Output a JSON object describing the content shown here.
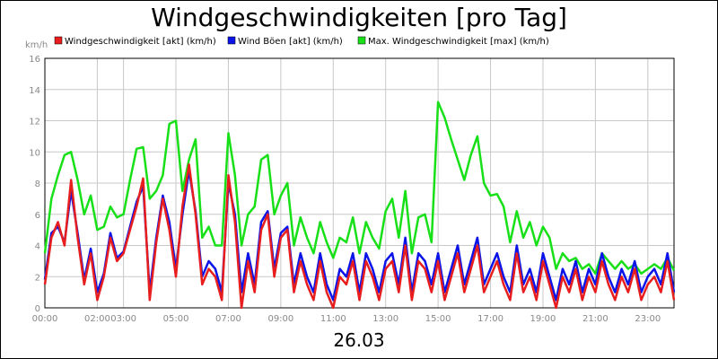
{
  "chart_data": {
    "type": "line",
    "title": "Windgeschwindigkeiten [pro Tag]",
    "unit_label": "km/h",
    "date_label": "26.03",
    "ylim": [
      0,
      16
    ],
    "y_ticks": [
      "0",
      "2",
      "4",
      "6",
      "8",
      "10",
      "12",
      "14",
      "16"
    ],
    "xlim_hours": [
      0,
      24
    ],
    "x_ticks": [
      "00:00",
      "02:00",
      "03:00",
      "05:00",
      "07:00",
      "09:00",
      "11:00",
      "13:00",
      "15:00",
      "17:00",
      "19:00",
      "21:00",
      "23:00"
    ],
    "grid": true,
    "legend_position": "top",
    "x": [
      0,
      0.25,
      0.5,
      0.75,
      1,
      1.25,
      1.5,
      1.75,
      2,
      2.25,
      2.5,
      2.75,
      3,
      3.25,
      3.5,
      3.75,
      4,
      4.25,
      4.5,
      4.75,
      5,
      5.25,
      5.5,
      5.75,
      6,
      6.25,
      6.5,
      6.75,
      7,
      7.25,
      7.5,
      7.75,
      8,
      8.25,
      8.5,
      8.75,
      9,
      9.25,
      9.5,
      9.75,
      10,
      10.25,
      10.5,
      10.75,
      11,
      11.25,
      11.5,
      11.75,
      12,
      12.25,
      12.5,
      12.75,
      13,
      13.25,
      13.5,
      13.75,
      14,
      14.25,
      14.5,
      14.75,
      15,
      15.25,
      15.5,
      15.75,
      16,
      16.25,
      16.5,
      16.75,
      17,
      17.25,
      17.5,
      17.75,
      18,
      18.25,
      18.5,
      18.75,
      19,
      19.25,
      19.5,
      19.75,
      20,
      20.25,
      20.5,
      20.75,
      21,
      21.25,
      21.5,
      21.75,
      22,
      22.25,
      22.5,
      22.75,
      23,
      23.25,
      23.5,
      23.75,
      24
    ],
    "series": [
      {
        "name": "Windgeschwindigkeit [akt] (km/h)",
        "color": "#e81e1e",
        "values": [
          1.5,
          4.5,
          5.5,
          4,
          8.2,
          4.5,
          1.5,
          3.5,
          0.5,
          2,
          4.5,
          3,
          3.5,
          5,
          6.5,
          8.3,
          0.5,
          4.2,
          7,
          5,
          2,
          6.5,
          9.2,
          6,
          1.5,
          2.5,
          2,
          0.5,
          8.5,
          5.5,
          0,
          3,
          1,
          5,
          6,
          2,
          4.5,
          5,
          1,
          3,
          1.5,
          0.5,
          3,
          1,
          0,
          2,
          1.5,
          3,
          0.5,
          3,
          2,
          0.5,
          2.5,
          3,
          1,
          4,
          0.5,
          3,
          2.5,
          1,
          3,
          0.5,
          2,
          3.5,
          1,
          2.5,
          4,
          1,
          2,
          3,
          1.5,
          0.5,
          3.5,
          1,
          2,
          0.5,
          3,
          1.5,
          0,
          2,
          1,
          2.5,
          0.5,
          2,
          1,
          3,
          1.5,
          0.5,
          2,
          1,
          2.5,
          0.5,
          1.5,
          2,
          1,
          3,
          0.5
        ]
      },
      {
        "name": "Wind Böen [akt] (km/h)",
        "color": "#0a14e8",
        "values": [
          1.8,
          4.8,
          5.2,
          4.2,
          7.5,
          4.8,
          1.8,
          3.8,
          1,
          2.2,
          4.8,
          3.2,
          3.6,
          5.2,
          6.8,
          7.8,
          1,
          4.5,
          7.2,
          5.5,
          2.5,
          6,
          8.8,
          6.2,
          2,
          3,
          2.5,
          1,
          8,
          6,
          1,
          3.5,
          1.5,
          5.5,
          6.2,
          2.5,
          4.8,
          5.2,
          1.5,
          3.5,
          2,
          1,
          3.5,
          1.5,
          0.5,
          2.5,
          2,
          3.5,
          1,
          3.5,
          2.5,
          1,
          3,
          3.5,
          1.5,
          4.5,
          1,
          3.5,
          3,
          1.5,
          3.5,
          1,
          2.5,
          4,
          1.5,
          3,
          4.5,
          1.5,
          2.5,
          3.5,
          2,
          1,
          4,
          1.5,
          2.5,
          1,
          3.5,
          2,
          0.5,
          2.5,
          1.5,
          3,
          1,
          2.5,
          1.5,
          3.5,
          2,
          1,
          2.5,
          1.5,
          3,
          1,
          2,
          2.5,
          1.5,
          3.5,
          1
        ]
      },
      {
        "name": "Max. Windgeschwindigkeit [max] (km/h)",
        "color": "#18e018",
        "values": [
          3.5,
          7,
          8.5,
          9.8,
          10,
          8.2,
          6,
          7.2,
          5,
          5.2,
          6.5,
          5.8,
          6,
          8.2,
          10.2,
          10.3,
          7,
          7.5,
          8.5,
          11.8,
          12,
          7.5,
          9.5,
          10.8,
          4.5,
          5.2,
          4,
          4,
          11.2,
          8.5,
          4,
          6,
          6.5,
          9.5,
          9.8,
          6,
          7.2,
          8,
          4,
          5.8,
          4.5,
          3.5,
          5.5,
          4.2,
          3.2,
          4.5,
          4.2,
          5.8,
          3.5,
          5.5,
          4.5,
          3.8,
          6.2,
          7,
          4.5,
          7.5,
          3.5,
          5.8,
          6,
          4.2,
          13.2,
          12.2,
          10.8,
          9.5,
          8.2,
          9.8,
          11,
          8,
          7.2,
          7.3,
          6.5,
          4.2,
          6.2,
          4.5,
          5.5,
          4,
          5.2,
          4.5,
          2.5,
          3.5,
          3,
          3.2,
          2.5,
          2.8,
          2.2,
          3.5,
          3,
          2.5,
          3,
          2.5,
          2.8,
          2.2,
          2.5,
          2.8,
          2.5,
          3.2,
          2.4
        ]
      }
    ]
  }
}
